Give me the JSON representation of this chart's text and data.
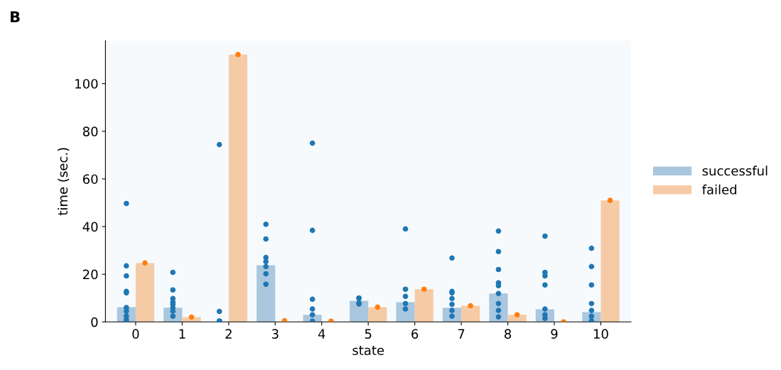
{
  "chart_data": {
    "type": "bar",
    "title": "B",
    "xlabel": "state",
    "ylabel": "time (sec.)",
    "categories": [
      "0",
      "1",
      "2",
      "3",
      "4",
      "5",
      "6",
      "7",
      "8",
      "9",
      "10"
    ],
    "series": [
      {
        "name": "successful",
        "color": "#a9c7de",
        "values": [
          6.2,
          6,
          null,
          23.8,
          3,
          8.9,
          8.3,
          6,
          11.9,
          5.3,
          4.1
        ]
      },
      {
        "name": "failed",
        "color": "#f5cba6",
        "values": [
          24.7,
          2,
          112.2,
          null,
          null,
          6.2,
          13.7,
          6.8,
          3,
          0,
          51
        ]
      },
      {
        "type": "scatter",
        "color": "#1f77b4",
        "x": [
          "0",
          "0",
          "0",
          "0",
          "0",
          "0",
          "0",
          "0",
          "0",
          "0",
          "1",
          "1",
          "1",
          "1",
          "1",
          "1",
          "1",
          "1",
          "2",
          "2",
          "2",
          "2",
          "2",
          "3",
          "3",
          "3",
          "3",
          "3",
          "3",
          "3",
          "4",
          "4",
          "4",
          "4",
          "4",
          "4",
          "5",
          "5",
          "5",
          "5",
          "6",
          "6",
          "6",
          "6",
          "6",
          "7",
          "7",
          "7",
          "7",
          "7",
          "7",
          "7",
          "8",
          "8",
          "8",
          "8",
          "8",
          "8",
          "8",
          "8",
          "8",
          "9",
          "9",
          "9",
          "9",
          "9",
          "9",
          "9",
          "10",
          "10",
          "10",
          "10",
          "10",
          "10",
          "10"
        ],
        "values": [
          49.7,
          23.5,
          19.3,
          12.8,
          12.2,
          6,
          4.5,
          2.5,
          1,
          0.3,
          20.8,
          13.4,
          9.8,
          8.3,
          7.4,
          6,
          4.5,
          2.4,
          74.4,
          4.4,
          0.3,
          0.3,
          0.3,
          41,
          34.8,
          27,
          25.3,
          23.2,
          20.2,
          15.8,
          75,
          38.4,
          9.5,
          5.4,
          3,
          0.3,
          10,
          10,
          8,
          7.5,
          39,
          13.7,
          10.7,
          7.7,
          5.4,
          26.8,
          12.8,
          12.2,
          9.8,
          7.4,
          4.8,
          2.4,
          38.1,
          29.5,
          22,
          16.4,
          15.2,
          11.9,
          7.7,
          4.8,
          2.1,
          36,
          20.8,
          19.3,
          15.5,
          5.4,
          3,
          1.5,
          30.9,
          23.2,
          15.5,
          7.7,
          4.8,
          2.4,
          0.5
        ]
      },
      {
        "type": "scatter",
        "color": "#ff7f0e",
        "x": [
          "0",
          "1",
          "2",
          "3",
          "4",
          "5",
          "6",
          "7",
          "8",
          "9",
          "10"
        ],
        "values": [
          24.7,
          2,
          112.2,
          0.5,
          0.3,
          6.2,
          13.7,
          6.8,
          3,
          0,
          51
        ]
      }
    ],
    "ylim": [
      0,
      118
    ],
    "yticks": [
      0,
      20,
      40,
      60,
      80,
      100
    ],
    "grid": false,
    "legend": "right",
    "marker": "circle"
  }
}
